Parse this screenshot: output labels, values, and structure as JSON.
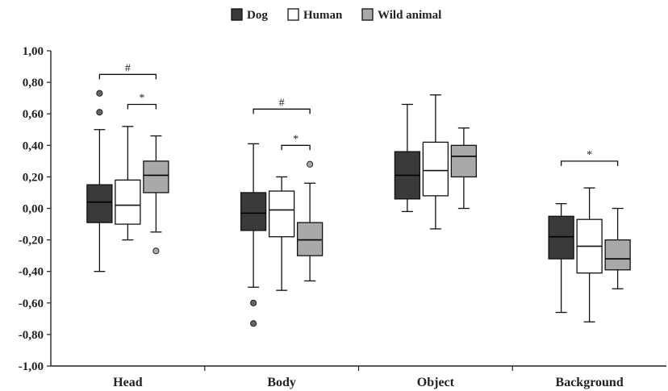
{
  "chart_data": {
    "type": "boxplot",
    "title": "",
    "xlabel": "",
    "ylabel": "",
    "ylim": [
      -1.0,
      1.0
    ],
    "y_ticks": [
      "1,00",
      "0,80",
      "0,60",
      "0,40",
      "0,20",
      "0,00",
      "-0,20",
      "-0,40",
      "-0,60",
      "-0,80",
      "-1,00"
    ],
    "y_tick_values": [
      1.0,
      0.8,
      0.6,
      0.4,
      0.2,
      0.0,
      -0.2,
      -0.4,
      -0.6,
      -0.8,
      -1.0
    ],
    "categories": [
      "Head",
      "Body",
      "Object",
      "Background"
    ],
    "legend": {
      "placement": "top-center",
      "entries": [
        "Dog",
        "Human",
        "Wild animal"
      ]
    },
    "series": [
      {
        "name": "Dog",
        "color": "#3a3a3a",
        "boxes": [
          {
            "min": -0.4,
            "q1": -0.09,
            "median": 0.04,
            "q3": 0.15,
            "max": 0.5,
            "outliers": [
              0.73,
              0.61
            ]
          },
          {
            "min": -0.5,
            "q1": -0.14,
            "median": -0.03,
            "q3": 0.1,
            "max": 0.41,
            "outliers": [
              -0.6,
              -0.73
            ]
          },
          {
            "min": -0.02,
            "q1": 0.06,
            "median": 0.21,
            "q3": 0.36,
            "max": 0.66,
            "outliers": []
          },
          {
            "min": -0.66,
            "q1": -0.32,
            "median": -0.18,
            "q3": -0.05,
            "max": 0.03,
            "outliers": []
          }
        ]
      },
      {
        "name": "Human",
        "color": "#ffffff",
        "boxes": [
          {
            "min": -0.2,
            "q1": -0.1,
            "median": 0.02,
            "q3": 0.18,
            "max": 0.52,
            "outliers": []
          },
          {
            "min": -0.52,
            "q1": -0.18,
            "median": -0.01,
            "q3": 0.11,
            "max": 0.2,
            "outliers": []
          },
          {
            "min": -0.13,
            "q1": 0.08,
            "median": 0.24,
            "q3": 0.42,
            "max": 0.72,
            "outliers": []
          },
          {
            "min": -0.72,
            "q1": -0.41,
            "median": -0.24,
            "q3": -0.07,
            "max": 0.13,
            "outliers": []
          }
        ]
      },
      {
        "name": "Wild animal",
        "color": "#a9a9a9",
        "boxes": [
          {
            "min": -0.15,
            "q1": 0.1,
            "median": 0.21,
            "q3": 0.3,
            "max": 0.46,
            "outliers": [
              -0.27
            ]
          },
          {
            "min": -0.46,
            "q1": -0.3,
            "median": -0.2,
            "q3": -0.09,
            "max": 0.16,
            "outliers": [
              0.28
            ]
          },
          {
            "min": 0.0,
            "q1": 0.2,
            "median": 0.33,
            "q3": 0.4,
            "max": 0.51,
            "outliers": []
          },
          {
            "min": -0.51,
            "q1": -0.39,
            "median": -0.32,
            "q3": -0.2,
            "max": 0.0,
            "outliers": []
          }
        ]
      }
    ],
    "significance": [
      {
        "category": 0,
        "from_series": 0,
        "to_series": 2,
        "y": 0.85,
        "label": "#"
      },
      {
        "category": 0,
        "from_series": 1,
        "to_series": 2,
        "y": 0.66,
        "label": "*"
      },
      {
        "category": 1,
        "from_series": 0,
        "to_series": 2,
        "y": 0.63,
        "label": "#"
      },
      {
        "category": 1,
        "from_series": 1,
        "to_series": 2,
        "y": 0.4,
        "label": "*"
      },
      {
        "category": 3,
        "from_series": 0,
        "to_series": 2,
        "y": 0.3,
        "label": "*"
      }
    ],
    "grid": false
  }
}
